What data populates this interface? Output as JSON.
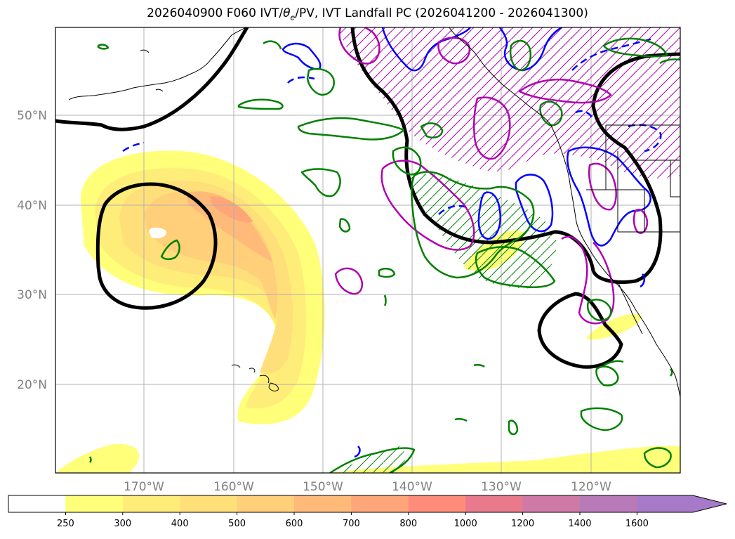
{
  "title": {
    "prefix": "2026040900 F060 IVT/",
    "theta": "θ",
    "theta_sub": "e",
    "suffix": "/PV, IVT Landfall PC (2026041200 - 2026041300)"
  },
  "map": {
    "lat_labels": [
      "50°N",
      "40°N",
      "30°N",
      "20°N"
    ],
    "lon_labels": [
      "170°W",
      "160°W",
      "150°W",
      "140°W",
      "130°W",
      "120°W"
    ],
    "colors": {
      "pv_contour": "#000000",
      "theta_contour": "#0000ff",
      "pc_contour": "#008000",
      "landfall_contour": "#b000b0",
      "gridline": "#b0b0b0"
    }
  },
  "colorbar": {
    "levels": [
      "250",
      "300",
      "400",
      "500",
      "600",
      "700",
      "800",
      "1000",
      "1200",
      "1400",
      "1600"
    ],
    "colors": [
      "#ffffff",
      "#ffff7a",
      "#ffed7a",
      "#ffdf7a",
      "#ffcf7a",
      "#ffba7a",
      "#ffa57a",
      "#ff8c7a",
      "#e87a8c",
      "#cf7aa6",
      "#b87ab8",
      "#a67ac8"
    ]
  }
}
